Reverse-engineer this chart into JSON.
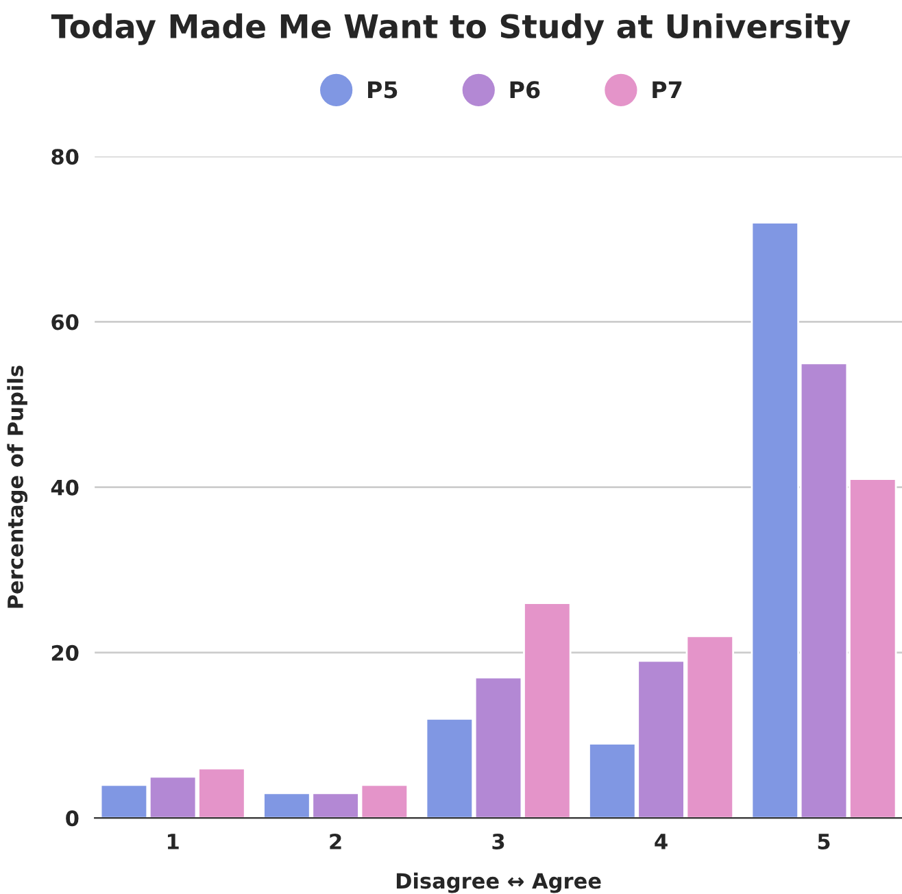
{
  "chart_data": {
    "type": "bar",
    "title": "Today Made Me Want to Study at University",
    "xlabel": "Disagree ↔ Agree",
    "ylabel": "Percentage of Pupils",
    "categories": [
      "1",
      "2",
      "3",
      "4",
      "5"
    ],
    "series": [
      {
        "name": "P5",
        "color": "#8097e3",
        "values": [
          4,
          3,
          12,
          9,
          72
        ]
      },
      {
        "name": "P6",
        "color": "#b388d4",
        "values": [
          5,
          3,
          17,
          19,
          55
        ]
      },
      {
        "name": "P7",
        "color": "#e494c9",
        "values": [
          6,
          4,
          26,
          22,
          41
        ]
      }
    ],
    "ylim": [
      0,
      80
    ],
    "yticks": [
      0,
      20,
      40,
      60,
      80
    ],
    "grid": "y",
    "legend": "top"
  }
}
